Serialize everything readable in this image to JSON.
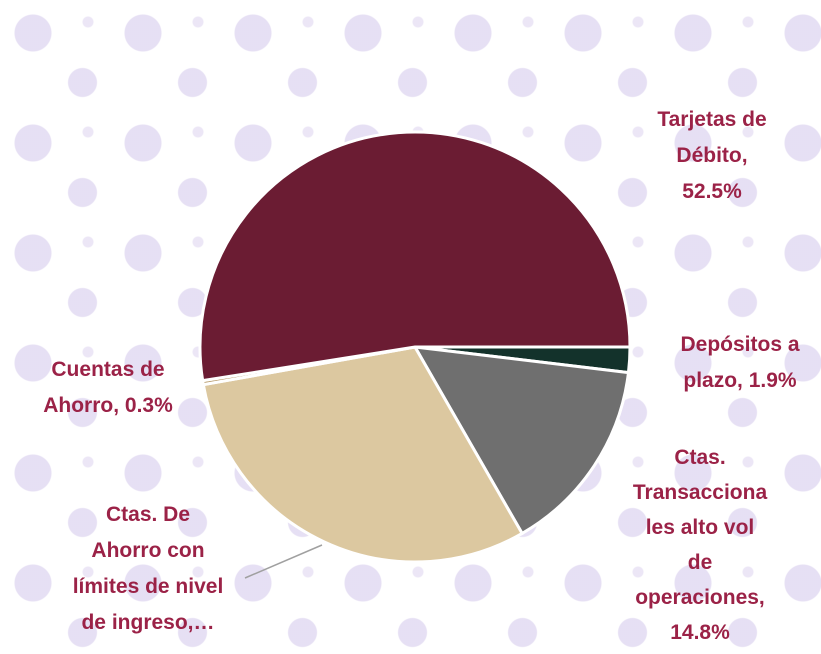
{
  "chart_data": {
    "type": "pie",
    "labels": [
      "Tarjetas de\nDébito,\n52.5%",
      "Cuentas de\nAhorro, 0.3%",
      "Ctas. De\nAhorro con\nlímites de nivel\nde ingreso,…",
      "Ctas.\nTransacciona\nles alto vol\nde\noperaciones,\n14.8%",
      "Depósitos a\nplazo, 1.9%"
    ],
    "values": [
      52.5,
      0.3,
      30.5,
      14.8,
      1.9
    ],
    "colors": [
      "#6b1c33",
      "#b79a6a",
      "#dcc8a0",
      "#6f6f6f",
      "#13322b"
    ]
  }
}
